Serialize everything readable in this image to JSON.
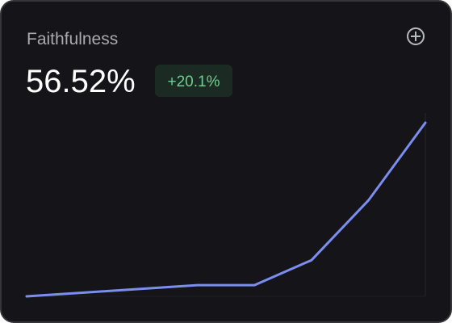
{
  "chart_data": {
    "type": "line",
    "title": "Faithfulness",
    "metric": "56.52%",
    "change": "+20.1%",
    "values": [
      10,
      11,
      12,
      13,
      13,
      19.7,
      35.7,
      56.52
    ],
    "color": "#7b8ef0"
  }
}
